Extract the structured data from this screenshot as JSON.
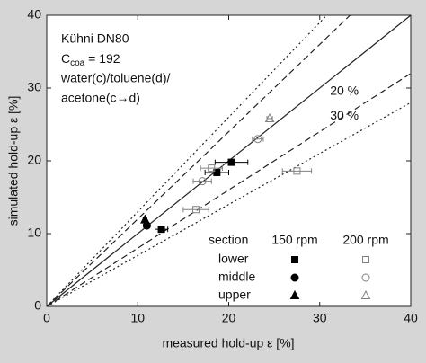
{
  "chart_data": {
    "type": "scatter",
    "xlabel": "measured hold-up ε [%]",
    "ylabel": "simulated hold-up ε [%]",
    "xlim": [
      0,
      40
    ],
    "ylim": [
      0,
      40
    ],
    "xticks": [
      0,
      10,
      20,
      30,
      40
    ],
    "yticks": [
      0,
      10,
      20,
      30,
      40
    ],
    "annotation": {
      "line1": "Kühni DN80",
      "c": "C",
      "sub": "coa",
      "eq": " = 192",
      "line3": "water(c)/toluene(d)/",
      "line4": "acetone(c→d)"
    },
    "reference_lines": [
      {
        "slope": 1,
        "style": "solid"
      },
      {
        "slope": 1.2,
        "style": "dashed"
      },
      {
        "slope": 0.8,
        "style": "dashed",
        "label": "20 %"
      },
      {
        "slope": 1.3,
        "style": "dotted"
      },
      {
        "slope": 0.7,
        "style": "dotted",
        "label": "30 %"
      }
    ],
    "legend_header": "section",
    "speeds": [
      {
        "label": "150 rpm",
        "filled": true,
        "color": "#000000"
      },
      {
        "label": "200 rpm",
        "filled": false,
        "color": "#808080"
      }
    ],
    "sections": [
      {
        "name": "lower",
        "marker": "square",
        "groups": [
          {
            "x": [
              12.6,
              18.7,
              20.3
            ],
            "y": [
              10.6,
              18.4,
              19.8
            ],
            "xerr": [
              0.7,
              1.3,
              1.8
            ]
          },
          {
            "x": [
              16.4,
              27.5,
              18.1
            ],
            "y": [
              13.3,
              18.6,
              19.0
            ],
            "xerr": [
              1.4,
              1.6,
              1.2
            ]
          }
        ]
      },
      {
        "name": "middle",
        "marker": "circle",
        "groups": [
          {
            "x": [
              11.0
            ],
            "y": [
              11.1
            ],
            "xerr": [
              0.3
            ]
          },
          {
            "x": [
              17.1,
              23.2
            ],
            "y": [
              17.2,
              23.0
            ],
            "xerr": [
              1.0,
              0.6
            ]
          }
        ]
      },
      {
        "name": "upper",
        "marker": "triangle",
        "groups": [
          {
            "x": [
              10.8
            ],
            "y": [
              11.9
            ],
            "xerr": [
              0.2
            ]
          },
          {
            "x": [
              24.5
            ],
            "y": [
              25.8
            ],
            "xerr": [
              0.3
            ]
          }
        ]
      }
    ]
  }
}
